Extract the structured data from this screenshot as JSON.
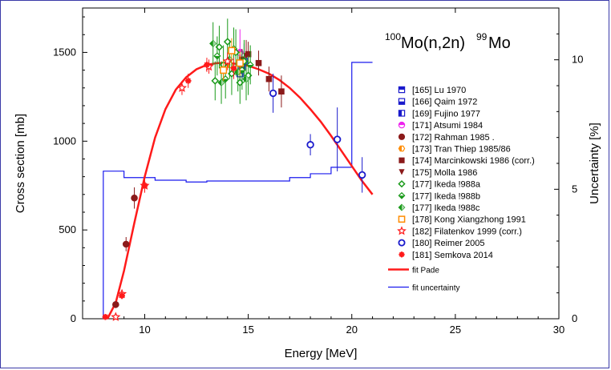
{
  "chart_data": {
    "type": "scatter",
    "title": "",
    "reaction": {
      "target_mass": "100",
      "reaction_body": "Mo(n,2n)",
      "product_mass": "99",
      "product": "Mo"
    },
    "xlabel": "Energy [MeV]",
    "ylabel": "Cross section [mb]",
    "ylabel_right": "Uncertainty [%]",
    "xlim": [
      7,
      30
    ],
    "ylim": [
      0,
      1750
    ],
    "ylim_right": [
      0,
      12
    ],
    "xticks": [
      10,
      15,
      20,
      25,
      30
    ],
    "yticks": [
      0,
      500,
      1000,
      1500
    ],
    "yticks_right": [
      0,
      5,
      10
    ],
    "legend_position": "right",
    "series": [
      {
        "name": "[165] Lu 1970",
        "color": "#1a1acc",
        "marker": "half-square-top",
        "points": [
          [
            14.6,
            1380,
            70
          ]
        ]
      },
      {
        "name": "[166] Qaim 1972",
        "color": "#1a1acc",
        "marker": "half-square-bottom",
        "points": [
          [
            14.7,
            1420,
            90
          ]
        ]
      },
      {
        "name": "[169] Fujino 1977",
        "color": "#1a1acc",
        "marker": "half-square-left",
        "points": [
          [
            14.8,
            1450,
            100
          ]
        ]
      },
      {
        "name": "[171] Atsumi 1984",
        "color": "#ee22ee",
        "marker": "half-circle",
        "points": [
          [
            14.6,
            1500,
            130
          ]
        ]
      },
      {
        "name": "[172] Rahman 1985 .",
        "color": "#8b1a1a",
        "marker": "circle",
        "points": [
          [
            8.6,
            80,
            20
          ],
          [
            9.1,
            420,
            40
          ],
          [
            9.5,
            680,
            60
          ]
        ]
      },
      {
        "name": "[173] Tran Thiep 1985/86",
        "color": "#ff8c00",
        "marker": "half-hexagon",
        "points": [
          [
            14.1,
            1430,
            70
          ]
        ]
      },
      {
        "name": "[174] Marcinkowski 1986 (corr.)",
        "color": "#8b1a1a",
        "marker": "square",
        "points": [
          [
            14.7,
            1460,
            60
          ],
          [
            15.0,
            1490,
            70
          ],
          [
            15.5,
            1440,
            70
          ],
          [
            16.0,
            1350,
            70
          ],
          [
            16.6,
            1280,
            90
          ]
        ]
      },
      {
        "name": "[175] Molla 1986",
        "color": "#8b1a1a",
        "marker": "triangle-down",
        "points": [
          [
            14.6,
            1420,
            80
          ],
          [
            14.9,
            1480,
            90
          ]
        ]
      },
      {
        "name": "[177] Ikeda !988a",
        "color": "#1a9a1a",
        "marker": "diamond",
        "points": [
          [
            13.4,
            1340,
            110
          ],
          [
            13.6,
            1530,
            120
          ],
          [
            13.8,
            1430,
            110
          ],
          [
            14.0,
            1560,
            130
          ],
          [
            14.2,
            1380,
            120
          ],
          [
            14.4,
            1500,
            130
          ],
          [
            14.6,
            1330,
            120
          ],
          [
            14.8,
            1450,
            120
          ],
          [
            15.0,
            1370,
            110
          ]
        ]
      },
      {
        "name": "[177] Ikeda !988b",
        "color": "#1a9a1a",
        "marker": "half-diamond",
        "points": [
          [
            13.5,
            1480,
            110
          ],
          [
            13.9,
            1350,
            110
          ],
          [
            14.3,
            1520,
            120
          ],
          [
            14.7,
            1400,
            110
          ],
          [
            15.1,
            1430,
            110
          ]
        ]
      },
      {
        "name": "[177] Ikeda !988c",
        "color": "#1a9a1a",
        "marker": "half-diamond-filled",
        "points": [
          [
            13.3,
            1550,
            120
          ],
          [
            13.7,
            1330,
            120
          ],
          [
            14.1,
            1460,
            110
          ],
          [
            14.5,
            1390,
            110
          ],
          [
            14.9,
            1350,
            120
          ]
        ]
      },
      {
        "name": "[178] Kong Xiangzhong 1991",
        "color": "#ff8c00",
        "marker": "square-open",
        "points": [
          [
            13.8,
            1400,
            60
          ],
          [
            14.2,
            1510,
            70
          ],
          [
            14.6,
            1440,
            70
          ]
        ]
      },
      {
        "name": "[182] Filatenkov 1999 (corr.)",
        "color": "#ff1a1a",
        "marker": "star",
        "points": [
          [
            8.6,
            10,
            15
          ],
          [
            8.9,
            140,
            20
          ],
          [
            10.0,
            750,
            40
          ],
          [
            11.8,
            1300,
            40
          ],
          [
            13.1,
            1420,
            40
          ],
          [
            14.0,
            1450,
            50
          ]
        ]
      },
      {
        "name": "[180] Reimer 2005",
        "color": "#1a1acc",
        "marker": "circle-open",
        "points": [
          [
            16.2,
            1270,
            110
          ],
          [
            18.0,
            980,
            60
          ],
          [
            19.3,
            1010,
            180
          ],
          [
            20.5,
            810,
            100
          ]
        ]
      },
      {
        "name": "[181] Semkova 2014",
        "color": "#ff1a1a",
        "marker": "asterisk",
        "points": [
          [
            8.1,
            10,
            10
          ],
          [
            8.9,
            130,
            20
          ],
          [
            10.0,
            750,
            40
          ],
          [
            12.1,
            1340,
            40
          ],
          [
            13.0,
            1430,
            40
          ],
          [
            14.3,
            1410,
            60
          ]
        ]
      }
    ],
    "fit": {
      "name": "fit Pade",
      "color": "#ff1a1a",
      "x": [
        8.2,
        8.6,
        9.0,
        9.5,
        10.0,
        10.5,
        11.0,
        11.5,
        12.0,
        12.5,
        13.0,
        13.5,
        14.0,
        14.5,
        15.0,
        15.5,
        16.0,
        16.5,
        17.0,
        17.5,
        18.0,
        18.5,
        19.0,
        19.5,
        20.0,
        20.5,
        21.0
      ],
      "y": [
        0,
        90,
        270,
        540,
        800,
        1020,
        1180,
        1290,
        1360,
        1405,
        1430,
        1440,
        1440,
        1435,
        1425,
        1405,
        1380,
        1345,
        1300,
        1245,
        1180,
        1110,
        1030,
        945,
        860,
        775,
        700
      ]
    },
    "uncertainty": {
      "name": "fit uncertainty",
      "color": "#1a1aee",
      "axis": "right",
      "steps": [
        [
          8.0,
          8.0,
          0.0
        ],
        [
          8.0,
          9.0,
          5.7
        ],
        [
          9.0,
          10.5,
          5.45
        ],
        [
          10.5,
          12.0,
          5.35
        ],
        [
          12.0,
          13.0,
          5.28
        ],
        [
          13.0,
          17.0,
          5.32
        ],
        [
          17.0,
          18.0,
          5.45
        ],
        [
          18.0,
          19.0,
          5.6
        ],
        [
          19.0,
          20.0,
          5.85
        ],
        [
          20.0,
          20.0,
          6.6
        ],
        [
          20.0,
          21.0,
          9.9
        ]
      ]
    }
  }
}
